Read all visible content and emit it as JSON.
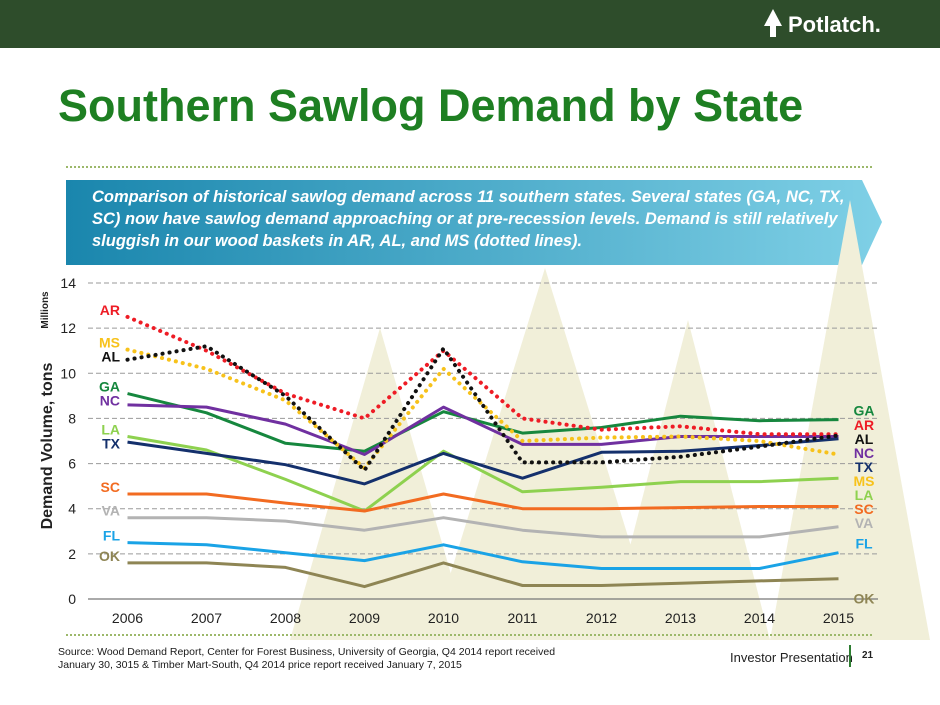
{
  "header": {
    "logo_text": "Potlatch.",
    "logo_icon": "tree-logo-icon"
  },
  "page": {
    "title": "Southern Sawlog Demand by State",
    "banner_text": "Comparison of historical sawlog demand across 11 southern states. Several states (GA, NC, TX, SC) now have sawlog demand approaching or at pre-recession levels. Demand is still relatively sluggish in our wood baskets in AR, AL, and MS (dotted lines).",
    "source_line1": "Source: Wood Demand Report, Center for Forest Business, University of Georgia, Q4 2014 report received",
    "source_line2": "January 30, 3015 & Timber Mart-South, Q4 2014 price report received January 7, 2015",
    "footer_label": "Investor Presentation",
    "page_number": "21"
  },
  "colors": {
    "title": "#1e7f22",
    "header_bar": "#2e4d2b",
    "banner": "#1f8fb3"
  },
  "chart_data": {
    "type": "line",
    "ylabel": "Demand Volume, tons",
    "yunit": "Millions",
    "ylim": [
      0,
      14
    ],
    "yticks": [
      "0",
      "2",
      "4",
      "6",
      "8",
      "10",
      "12",
      "14"
    ],
    "grid": "dashed horizontal",
    "categories": [
      "2006",
      "2007",
      "2008",
      "2009",
      "2010",
      "2011",
      "2012",
      "2013",
      "2014",
      "2015"
    ],
    "series": [
      {
        "name": "AR",
        "color": "#ee1c25",
        "style": "dotted",
        "values": [
          12.5,
          11.0,
          9.1,
          8.0,
          11.0,
          8.0,
          7.5,
          7.65,
          7.3,
          7.3
        ]
      },
      {
        "name": "MS",
        "color": "#f7c21b",
        "style": "dotted",
        "values": [
          11.05,
          10.2,
          8.8,
          5.8,
          10.2,
          7.0,
          7.15,
          7.2,
          7.0,
          6.4
        ]
      },
      {
        "name": "AL",
        "color": "#111111",
        "style": "dotted",
        "values": [
          10.6,
          11.2,
          9.0,
          5.7,
          11.1,
          6.05,
          6.05,
          6.3,
          6.75,
          7.25
        ]
      },
      {
        "name": "GA",
        "color": "#16873e",
        "style": "solid",
        "values": [
          9.1,
          8.25,
          6.9,
          6.55,
          8.3,
          7.35,
          7.6,
          8.1,
          7.9,
          7.95
        ]
      },
      {
        "name": "NC",
        "color": "#7030a0",
        "style": "solid",
        "values": [
          8.6,
          8.5,
          7.75,
          6.4,
          8.5,
          6.85,
          6.85,
          7.2,
          7.2,
          7.2
        ]
      },
      {
        "name": "LA",
        "color": "#8ed14f",
        "style": "solid",
        "values": [
          7.2,
          6.6,
          5.3,
          3.9,
          6.55,
          4.75,
          4.95,
          5.2,
          5.2,
          5.35
        ]
      },
      {
        "name": "TX",
        "color": "#14306c",
        "style": "solid",
        "values": [
          6.95,
          6.45,
          5.95,
          5.1,
          6.45,
          5.35,
          6.5,
          6.55,
          6.8,
          7.1
        ]
      },
      {
        "name": "SC",
        "color": "#f26b21",
        "style": "solid",
        "values": [
          4.65,
          4.65,
          4.25,
          3.9,
          4.65,
          4.0,
          4.0,
          4.05,
          4.1,
          4.1
        ]
      },
      {
        "name": "VA",
        "color": "#b3b3b3",
        "style": "solid",
        "values": [
          3.6,
          3.6,
          3.45,
          3.05,
          3.6,
          3.05,
          2.75,
          2.75,
          2.75,
          3.2
        ]
      },
      {
        "name": "FL",
        "color": "#1aa3e6",
        "style": "solid",
        "values": [
          2.5,
          2.4,
          2.05,
          1.7,
          2.4,
          1.65,
          1.35,
          1.35,
          1.35,
          2.05
        ]
      },
      {
        "name": "OK",
        "color": "#8e8554",
        "style": "solid",
        "values": [
          1.6,
          1.6,
          1.4,
          0.55,
          1.6,
          0.6,
          0.6,
          0.7,
          0.8,
          0.9
        ]
      }
    ]
  }
}
